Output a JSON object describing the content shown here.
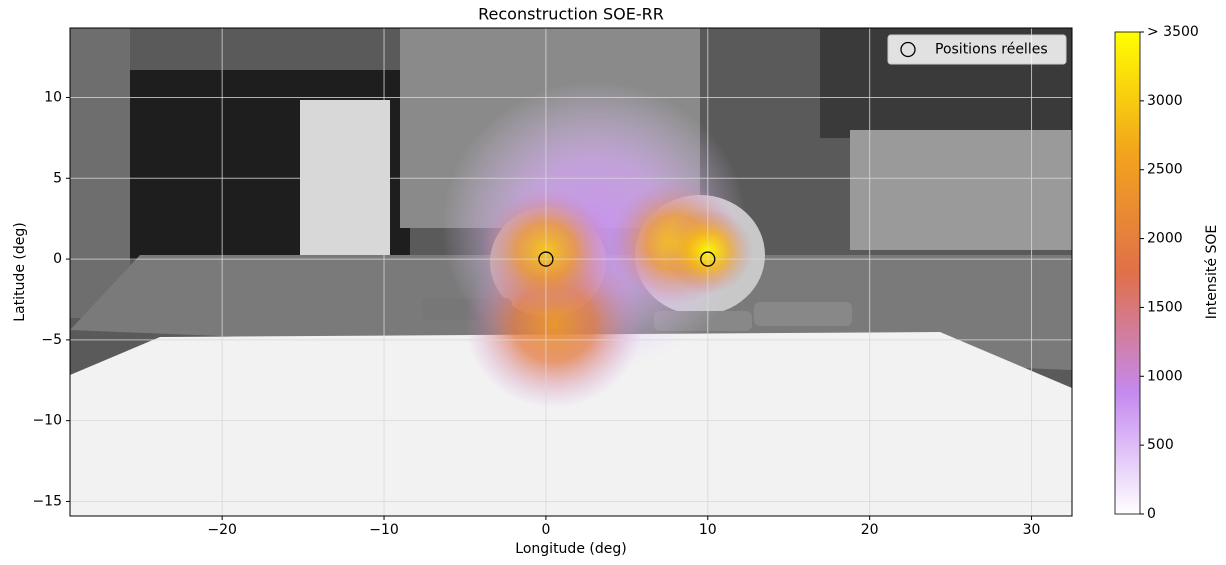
{
  "chart_data": {
    "type": "scatter",
    "title": "Reconstruction SOE-RR",
    "x_label": "Longitude (deg)",
    "y_label": "Latitude (deg)",
    "x": [
      0,
      10
    ],
    "series": [
      {
        "name": "Positions réelles",
        "color": "#000000",
        "values": [
          0,
          0
        ]
      }
    ],
    "xlim": [
      -29.4,
      32.5
    ],
    "xticks": [
      {
        "value": -20,
        "label": "−20"
      },
      {
        "value": -10,
        "label": "−10"
      },
      0,
      10,
      20,
      30
    ],
    "ylim": [
      -15.9,
      14.3
    ],
    "yticks": [
      {
        "value": -15,
        "label": "−15"
      },
      {
        "value": -10,
        "label": "−10"
      },
      {
        "value": -5,
        "label": "−5"
      },
      0,
      5,
      10
    ],
    "grid": true,
    "legend": "upper right",
    "hotspots": [
      {
        "x": 3,
        "y": 2,
        "value": 800
      },
      {
        "x": 0.5,
        "y": -4,
        "value": 2400
      },
      {
        "x": 0,
        "y": 0.5,
        "value": 3000
      },
      {
        "x": 8,
        "y": 1,
        "value": 3000
      },
      {
        "x": 10,
        "y": 0.5,
        "value": 3500
      }
    ],
    "colorbar": {
      "label": "Intensité SOE",
      "lim": [
        0,
        3500
      ],
      "ticks": [
        0,
        500,
        1000,
        1500,
        2000,
        2500,
        3000,
        {
          "value": 3500,
          "label": "> 3500"
        }
      ],
      "colormap": [
        "#ffffff",
        "#c58af0",
        "#e0704a",
        "#f2a41c",
        "#ffff00"
      ]
    }
  }
}
